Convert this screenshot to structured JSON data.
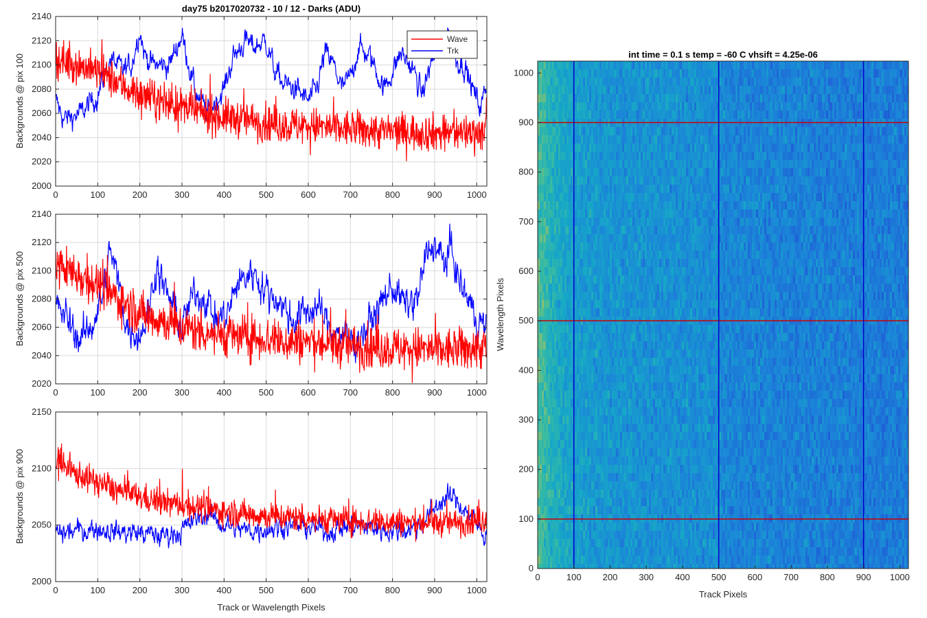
{
  "figure_title": "day75 b2017020732 - 10 / 12 - Darks (ADU)",
  "colors": {
    "wave": "#ff0000",
    "trk": "#0000ff",
    "grid": "#d9d9d9",
    "axis": "#262626"
  },
  "chart_data": [
    {
      "type": "line",
      "title": "day75 b2017020732 - 10 / 12 - Darks (ADU)",
      "xlabel": "",
      "ylabel": "Backgrounds @ pix 100",
      "xlim": [
        0,
        1024
      ],
      "ylim": [
        2000,
        2140
      ],
      "xticks": [
        0,
        100,
        200,
        300,
        400,
        500,
        600,
        700,
        800,
        900,
        1000
      ],
      "yticks": [
        2000,
        2020,
        2040,
        2060,
        2080,
        2100,
        2120,
        2140
      ],
      "grid": true,
      "legend": {
        "placement": "top-right",
        "entries": [
          "Wave",
          "Trk"
        ]
      },
      "series": [
        {
          "name": "Wave",
          "color": "#ff0000",
          "x": [
            0,
            50,
            100,
            150,
            200,
            250,
            300,
            350,
            400,
            450,
            500,
            550,
            600,
            650,
            700,
            750,
            800,
            850,
            900,
            950,
            1024
          ],
          "values": [
            2105,
            2100,
            2095,
            2085,
            2075,
            2070,
            2065,
            2060,
            2057,
            2055,
            2052,
            2050,
            2050,
            2048,
            2047,
            2046,
            2045,
            2045,
            2044,
            2044,
            2045
          ]
        },
        {
          "name": "Trk",
          "color": "#0000ff",
          "x": [
            0,
            20,
            60,
            100,
            130,
            160,
            180,
            200,
            210,
            230,
            270,
            300,
            330,
            360,
            380,
            400,
            420,
            450,
            470,
            500,
            520,
            540,
            570,
            600,
            620,
            640,
            660,
            680,
            700,
            720,
            750,
            780,
            800,
            820,
            850,
            870,
            890,
            910,
            930,
            950,
            970,
            990,
            1010,
            1024
          ],
          "values": [
            2070,
            2055,
            2060,
            2075,
            2105,
            2095,
            2100,
            2130,
            2110,
            2100,
            2100,
            2125,
            2080,
            2060,
            2070,
            2080,
            2105,
            2120,
            2115,
            2120,
            2095,
            2085,
            2080,
            2070,
            2080,
            2110,
            2100,
            2080,
            2090,
            2115,
            2105,
            2080,
            2095,
            2110,
            2095,
            2075,
            2100,
            2115,
            2130,
            2105,
            2100,
            2080,
            2065,
            2085
          ]
        }
      ]
    },
    {
      "type": "line",
      "title": "",
      "xlabel": "",
      "ylabel": "Backgrounds @ pix 500",
      "xlim": [
        0,
        1024
      ],
      "ylim": [
        2020,
        2140
      ],
      "xticks": [
        0,
        100,
        200,
        300,
        400,
        500,
        600,
        700,
        800,
        900,
        1000
      ],
      "yticks": [
        2020,
        2040,
        2060,
        2080,
        2100,
        2120,
        2140
      ],
      "grid": true,
      "series": [
        {
          "name": "Wave",
          "color": "#ff0000",
          "x": [
            0,
            50,
            100,
            150,
            200,
            250,
            300,
            350,
            400,
            450,
            500,
            550,
            600,
            650,
            700,
            750,
            800,
            850,
            900,
            950,
            1024
          ],
          "values": [
            2105,
            2098,
            2090,
            2080,
            2070,
            2065,
            2060,
            2057,
            2055,
            2053,
            2052,
            2050,
            2050,
            2048,
            2047,
            2046,
            2045,
            2045,
            2044,
            2044,
            2046
          ]
        },
        {
          "name": "Trk",
          "color": "#0000ff",
          "x": [
            0,
            30,
            60,
            90,
            110,
            130,
            150,
            170,
            200,
            220,
            240,
            260,
            280,
            300,
            330,
            360,
            380,
            410,
            430,
            470,
            500,
            530,
            560,
            590,
            620,
            650,
            680,
            710,
            740,
            770,
            800,
            830,
            860,
            880,
            900,
            920,
            940,
            960,
            980,
            1000,
            1024
          ],
          "values": [
            2075,
            2065,
            2050,
            2065,
            2080,
            2115,
            2090,
            2060,
            2055,
            2070,
            2105,
            2085,
            2075,
            2060,
            2085,
            2080,
            2065,
            2070,
            2090,
            2100,
            2085,
            2080,
            2065,
            2070,
            2075,
            2060,
            2055,
            2050,
            2060,
            2075,
            2090,
            2075,
            2080,
            2110,
            2120,
            2105,
            2115,
            2090,
            2080,
            2065,
            2060
          ]
        }
      ]
    },
    {
      "type": "line",
      "title": "",
      "xlabel": "Track or Wavelength Pixels",
      "ylabel": "Backgrounds @ pix 900",
      "xlim": [
        0,
        1024
      ],
      "ylim": [
        2000,
        2150
      ],
      "xticks": [
        0,
        100,
        200,
        300,
        400,
        500,
        600,
        700,
        800,
        900,
        1000
      ],
      "yticks": [
        2000,
        2050,
        2100,
        2150
      ],
      "grid": true,
      "series": [
        {
          "name": "Wave",
          "color": "#ff0000",
          "x": [
            0,
            50,
            100,
            150,
            200,
            250,
            300,
            350,
            400,
            450,
            500,
            550,
            600,
            650,
            700,
            750,
            800,
            850,
            900,
            950,
            1024
          ],
          "values": [
            2105,
            2095,
            2088,
            2080,
            2075,
            2070,
            2068,
            2065,
            2062,
            2060,
            2058,
            2057,
            2056,
            2055,
            2054,
            2053,
            2053,
            2052,
            2052,
            2052,
            2055
          ]
        },
        {
          "name": "Trk",
          "color": "#0000ff",
          "x": [
            0,
            50,
            100,
            150,
            200,
            250,
            300,
            330,
            360,
            400,
            450,
            500,
            550,
            600,
            650,
            700,
            750,
            800,
            850,
            880,
            910,
            940,
            970,
            1000,
            1024
          ],
          "values": [
            2042,
            2045,
            2047,
            2044,
            2043,
            2040,
            2045,
            2055,
            2060,
            2050,
            2045,
            2047,
            2050,
            2048,
            2045,
            2050,
            2048,
            2045,
            2047,
            2055,
            2070,
            2075,
            2065,
            2050,
            2040
          ]
        }
      ]
    },
    {
      "type": "heatmap",
      "title": "int time = 0.1 s   temp = -60 C   vhsift = 4.25e-06",
      "xlabel": "Track Pixels",
      "ylabel": "Wavelength Pixels",
      "xlim": [
        0,
        1024
      ],
      "ylim": [
        0,
        1024
      ],
      "xticks": [
        0,
        100,
        200,
        300,
        400,
        500,
        600,
        700,
        800,
        900,
        1000
      ],
      "yticks": [
        0,
        100,
        200,
        300,
        400,
        500,
        600,
        700,
        800,
        900,
        1000
      ],
      "vertical_markers": {
        "x": [
          100,
          500,
          900
        ],
        "color": "#0000cc"
      },
      "horizontal_markers": {
        "y": [
          100,
          500,
          900
        ],
        "color": "#cc0000"
      },
      "colormap": [
        "#1f5fd6",
        "#1b86d8",
        "#16a8c7",
        "#3bbca0",
        "#a8c060",
        "#e0b93f"
      ]
    }
  ]
}
